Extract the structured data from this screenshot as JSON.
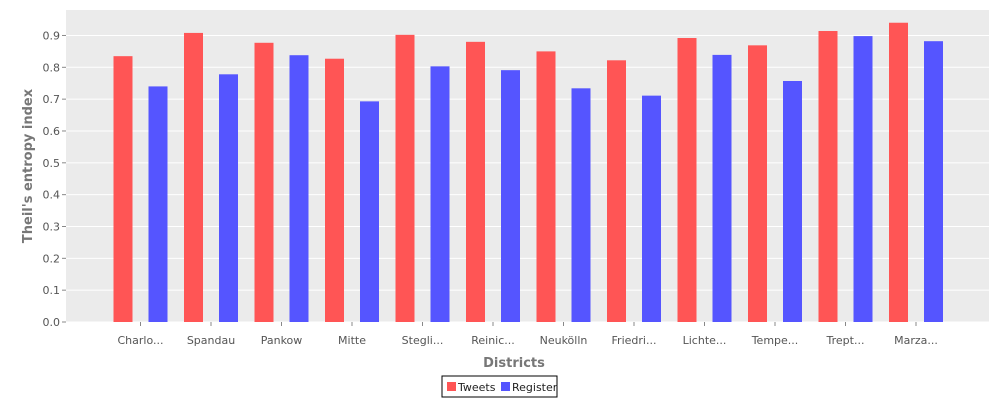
{
  "chart_data": {
    "type": "bar",
    "xlabel": "Districts",
    "ylabel": "Theil's entropy index",
    "ylim": [
      0,
      0.98
    ],
    "yticks": [
      "0.0",
      "0.1",
      "0.2",
      "0.3",
      "0.4",
      "0.5",
      "0.6",
      "0.7",
      "0.8",
      "0.9"
    ],
    "categories": [
      "Charlo...",
      "Spandau",
      "Pankow",
      "Mitte",
      "Stegli...",
      "Reinic...",
      "Neukölln",
      "Friedri...",
      "Lichte...",
      "Tempe...",
      "Trept...",
      "Marza..."
    ],
    "series": [
      {
        "name": "Tweets",
        "color": "#ff5555",
        "values": [
          0.835,
          0.908,
          0.877,
          0.827,
          0.902,
          0.88,
          0.85,
          0.822,
          0.892,
          0.869,
          0.914,
          0.94
        ]
      },
      {
        "name": "Register",
        "color": "#5555ff",
        "values": [
          0.74,
          0.778,
          0.838,
          0.693,
          0.803,
          0.791,
          0.734,
          0.711,
          0.839,
          0.757,
          0.898,
          0.882
        ]
      }
    ],
    "grid": true,
    "legend_position": "bottom-center",
    "plot_background": "#ebebeb"
  }
}
